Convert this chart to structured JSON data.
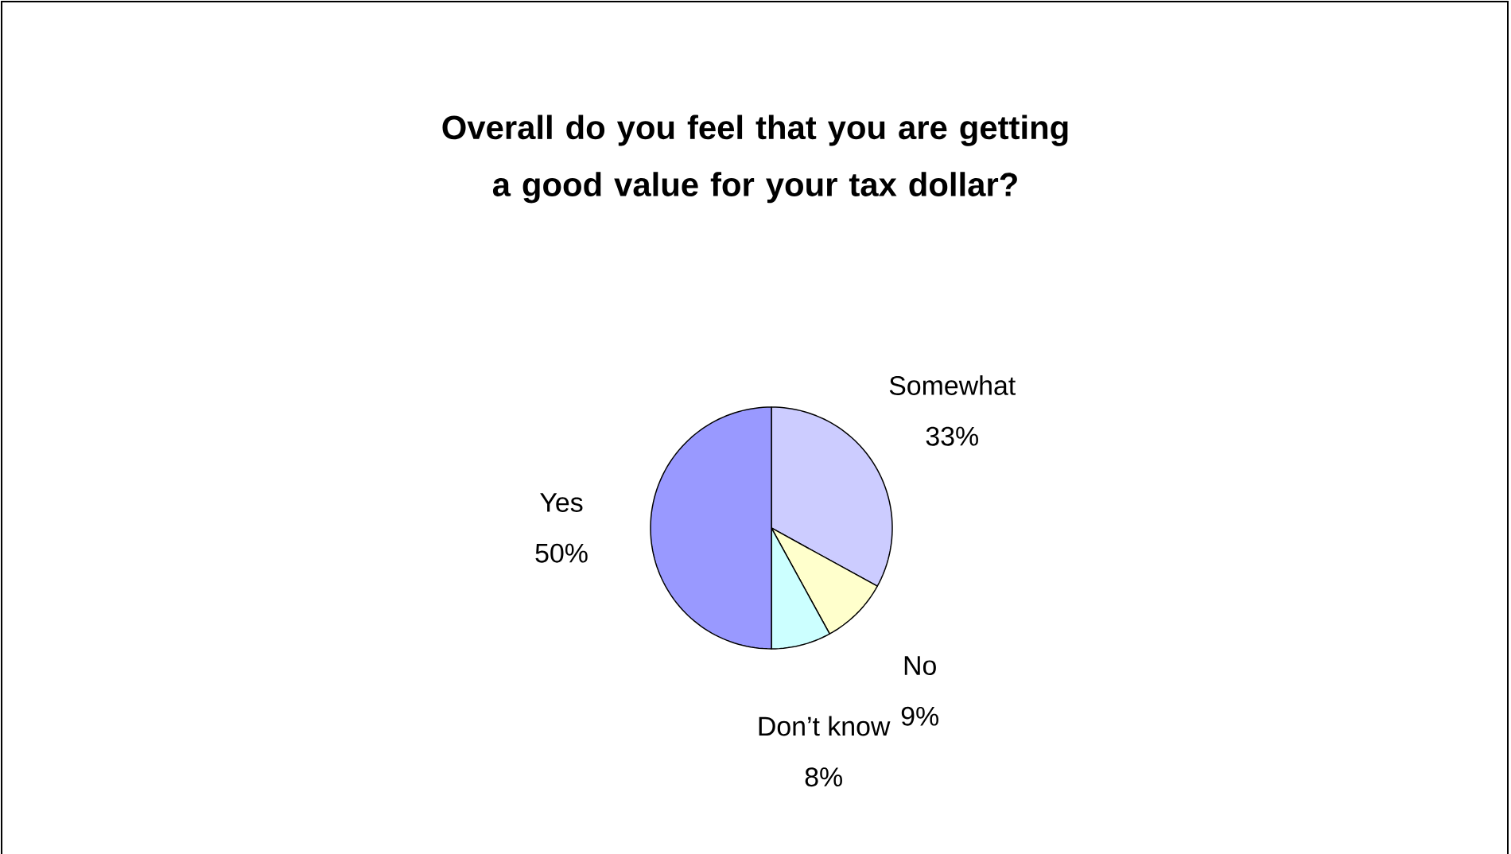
{
  "chart_data": {
    "type": "pie",
    "title": "Overall do you feel that you are getting a good value for your tax dollar?",
    "categories": [
      "Somewhat",
      "No",
      "Don’t know",
      "Yes"
    ],
    "values": [
      33,
      9,
      8,
      50
    ],
    "colors": [
      "#ccccff",
      "#ffffcc",
      "#ccffff",
      "#9999ff"
    ],
    "value_labels": [
      "33%",
      "9%",
      "8%",
      "50%"
    ]
  }
}
